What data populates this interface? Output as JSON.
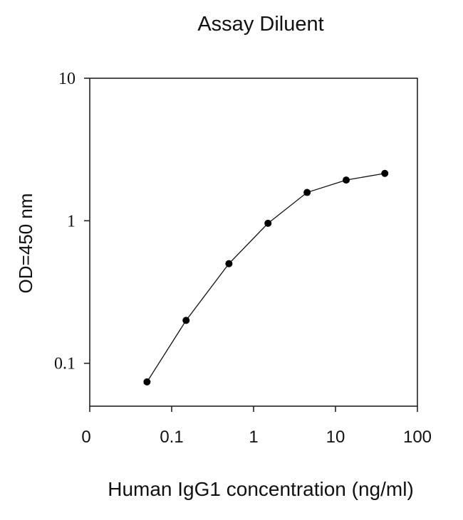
{
  "chart_data": {
    "type": "line",
    "title": "Assay Diluent",
    "xlabel": "Human IgG1 concentration (ng/ml)",
    "ylabel": "OD=450 nm",
    "x_scale": "log",
    "y_scale": "log",
    "xlim": [
      0.01,
      100
    ],
    "ylim": [
      0.05,
      10
    ],
    "x_tick_labels": [
      "0",
      "0.1",
      "1",
      "10",
      "100"
    ],
    "y_tick_labels": [
      "0.1",
      "1",
      "10"
    ],
    "grid": false,
    "series": [
      {
        "x": [
          0.05,
          0.15,
          0.5,
          1.5,
          4.5,
          13.5,
          40
        ],
        "y": [
          0.074,
          0.2,
          0.5,
          0.96,
          1.58,
          1.93,
          2.15
        ]
      }
    ]
  }
}
